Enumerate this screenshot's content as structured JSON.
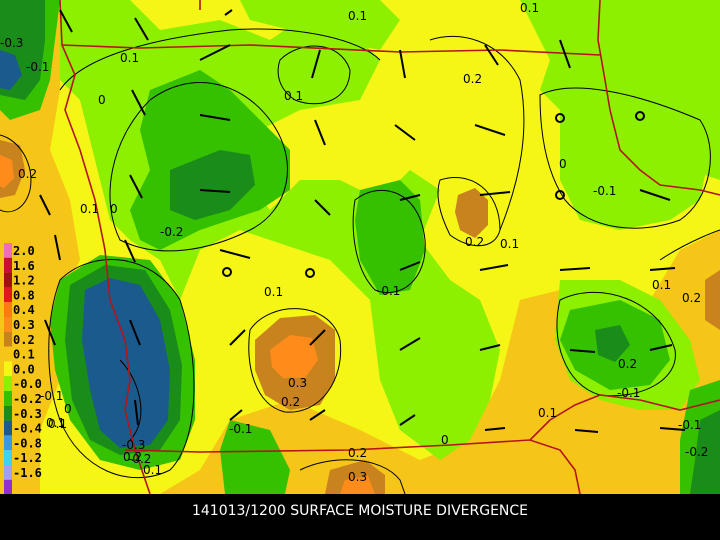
{
  "caption": "141013/1200 SURFACE MOISTURE DIVERGENCE",
  "legend": [
    {
      "label": "2.0",
      "color": "#ee6fb4"
    },
    {
      "label": "1.6",
      "color": "#c8102e"
    },
    {
      "label": "1.2",
      "color": "#a01010"
    },
    {
      "label": "0.8",
      "color": "#e01818"
    },
    {
      "label": "0.4",
      "color": "#ff7a10"
    },
    {
      "label": "0.3",
      "color": "#ff8c1a"
    },
    {
      "label": "0.2",
      "color": "#c8821e"
    },
    {
      "label": "0.1",
      "color": "#f5c518"
    },
    {
      "label": "0.0",
      "color": "#f5f516"
    },
    {
      "label": "-0.0",
      "color": "#8cf000"
    },
    {
      "label": "-0.2",
      "color": "#35c000"
    },
    {
      "label": "-0.3",
      "color": "#1a8c1a"
    },
    {
      "label": "-0.4",
      "color": "#1a5a8c"
    },
    {
      "label": "-0.8",
      "color": "#3a9ae0"
    },
    {
      "label": "-1.2",
      "color": "#40d0f0"
    },
    {
      "label": "-1.6",
      "color": "#a0a0f0"
    },
    {
      "label": "",
      "color": "#9030d0"
    }
  ],
  "contour_labels": [
    {
      "text": "0.1"
    },
    {
      "text": "0.1"
    },
    {
      "text": "0.1"
    },
    {
      "text": "0.1"
    },
    {
      "text": "0.2"
    },
    {
      "text": "0.2"
    },
    {
      "text": "0.1"
    },
    {
      "text": "0.1"
    },
    {
      "text": "-0.1"
    },
    {
      "text": "0.1"
    },
    {
      "text": "0.2"
    },
    {
      "text": "0.2"
    },
    {
      "text": "0.3"
    },
    {
      "text": "0.2"
    },
    {
      "text": "0.1"
    },
    {
      "text": "-0.1"
    },
    {
      "text": "0.2"
    },
    {
      "text": "0.3"
    },
    {
      "text": "0.1"
    },
    {
      "text": "-0.1"
    },
    {
      "text": "-0.2"
    },
    {
      "text": "0.1"
    },
    {
      "text": "0.2"
    },
    {
      "text": "0"
    },
    {
      "text": "0"
    },
    {
      "text": "-0.2"
    },
    {
      "text": "-0.3"
    },
    {
      "text": "0"
    },
    {
      "text": "-0.3"
    },
    {
      "text": "-0.1"
    },
    {
      "text": "-0.1"
    },
    {
      "text": "0"
    },
    {
      "text": "0.1"
    },
    {
      "text": "-0.1"
    },
    {
      "text": "-0.2"
    },
    {
      "text": "0.1"
    },
    {
      "text": "-0.1"
    },
    {
      "text": "0.2"
    },
    {
      "text": "0"
    }
  ]
}
